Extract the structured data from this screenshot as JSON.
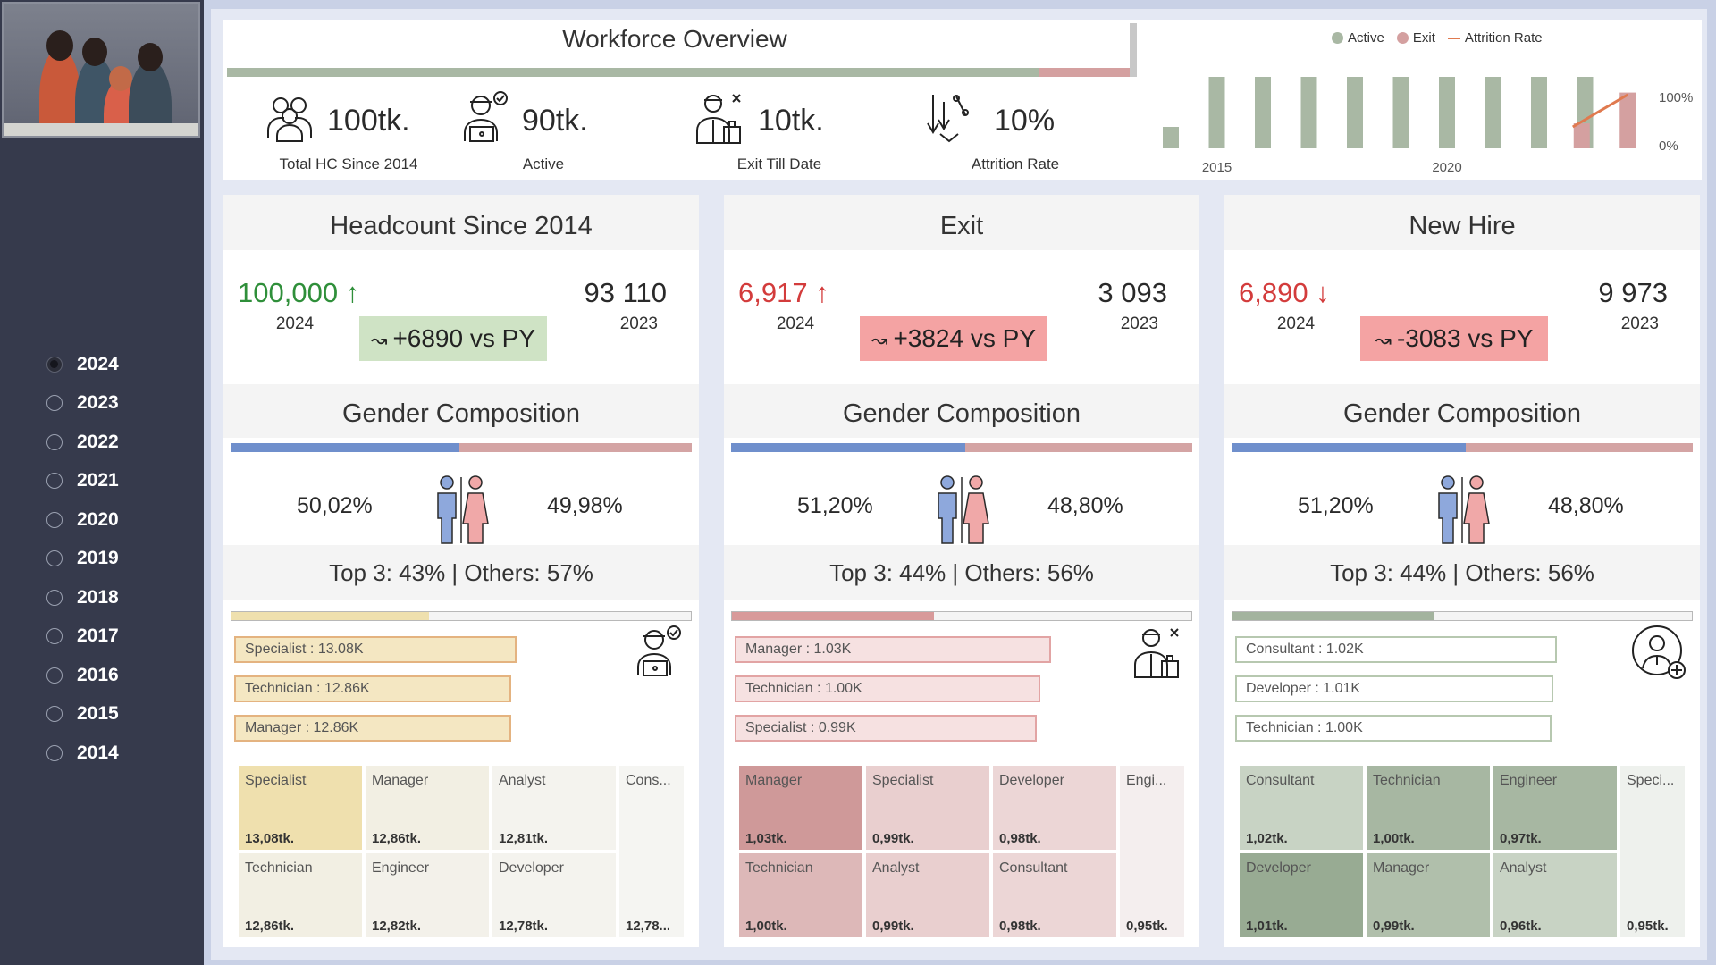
{
  "sidebar": {
    "years": [
      "2024",
      "2023",
      "2022",
      "2021",
      "2020",
      "2019",
      "2018",
      "2017",
      "2016",
      "2015",
      "2014"
    ],
    "selected": "2024"
  },
  "overview": {
    "title": "Workforce Overview",
    "kpis": [
      {
        "value": "100tk.",
        "label": "Total HC Since 2014",
        "icon": "team-icon"
      },
      {
        "value": "90tk.",
        "label": "Active",
        "icon": "employee-laptop-icon"
      },
      {
        "value": "10tk.",
        "label": "Exit Till Date",
        "icon": "exit-employee-icon"
      },
      {
        "value": "10%",
        "label": "Attrition Rate",
        "icon": "percent-down-icon"
      }
    ],
    "progress": {
      "active_share": 0.9,
      "exit_share": 0.1
    }
  },
  "chart_data": {
    "type": "bar",
    "legend": [
      "Active",
      "Exit",
      "Attrition Rate"
    ],
    "x_ticks": [
      "2015",
      "2020"
    ],
    "y2_ticks": [
      "100%",
      "0%"
    ],
    "categories": [
      "2014",
      "2015",
      "2016",
      "2017",
      "2018",
      "2019",
      "2020",
      "2021",
      "2022",
      "2023",
      "2024"
    ],
    "series": [
      {
        "name": "Active",
        "values": [
          0.3,
          1,
          1,
          1,
          1,
          1,
          1,
          1,
          1,
          1,
          0
        ]
      },
      {
        "name": "Exit",
        "values": [
          0,
          0,
          0,
          0,
          0,
          0,
          0,
          0,
          0,
          0.35,
          0.78
        ]
      },
      {
        "name": "Attrition Rate",
        "values": [
          0,
          0,
          0,
          0,
          0,
          0,
          0,
          0,
          0,
          0.25,
          0.75
        ]
      }
    ],
    "colors": {
      "Active": "#a9b8a4",
      "Exit": "#d4a0a0",
      "Attrition Rate": "#e07a4f"
    }
  },
  "cards": [
    {
      "title": "Headcount Since 2014",
      "current": "100,000",
      "arrow": "↑",
      "current_color": "#2f8f3a",
      "current_year": "2024",
      "previous": "93 110",
      "previous_year": "2023",
      "delta": "+6890 vs PY",
      "delta_bg": "#cfe3c5",
      "gender_title": "Gender Composition",
      "male_pct": "50,02%",
      "female_pct": "49,98%",
      "male_share": 0.5002,
      "top3": "Top 3: 43% | Others: 57%",
      "top3_share": 0.43,
      "top3_color": "#efe0ae",
      "role_fill": "#f4e7c2",
      "role_border": "#e4b380",
      "role_icon": "employee-laptop-icon",
      "roles": [
        {
          "label": "Specialist : 13.08K",
          "w": 316
        },
        {
          "label": "Technician : 12.86K",
          "w": 310
        },
        {
          "label": "Manager : 12.86K",
          "w": 310
        }
      ],
      "tiles": [
        {
          "name": "Specialist",
          "value": "13,08tk.",
          "bg": "#efe0ae"
        },
        {
          "name": "Manager",
          "value": "12,86tk.",
          "bg": "#f2efe3"
        },
        {
          "name": "Analyst",
          "value": "12,81tk.",
          "bg": "#f4f3ee"
        },
        {
          "name": "Technician",
          "value": "12,86tk.",
          "bg": "#f2efe3"
        },
        {
          "name": "Engineer",
          "value": "12,82tk.",
          "bg": "#f3f1ea"
        },
        {
          "name": "Developer",
          "value": "12,78tk.",
          "bg": "#f4f3ee"
        },
        {
          "name": "Cons...",
          "value": "12,78...",
          "bg": "#f5f5f2"
        }
      ]
    },
    {
      "title": "Exit",
      "current": "6,917",
      "arrow": "↑",
      "current_color": "#d33c3c",
      "current_year": "2024",
      "previous": "3 093",
      "previous_year": "2023",
      "delta": "+3824 vs PY",
      "delta_bg": "#f4a3a3",
      "gender_title": "Gender Composition",
      "male_pct": "51,20%",
      "female_pct": "48,80%",
      "male_share": 0.512,
      "top3": "Top 3: 44% | Others: 56%",
      "top3_share": 0.44,
      "top3_color": "#d89a9a",
      "role_fill": "#f6e1e1",
      "role_border": "#e2a4a4",
      "role_icon": "exit-employee-icon",
      "roles": [
        {
          "label": "Manager : 1.03K",
          "w": 354
        },
        {
          "label": "Technician : 1.00K",
          "w": 342
        },
        {
          "label": "Specialist : 0.99K",
          "w": 338
        }
      ],
      "tiles": [
        {
          "name": "Manager",
          "value": "1,03tk.",
          "bg": "#cf9999"
        },
        {
          "name": "Specialist",
          "value": "0,99tk.",
          "bg": "#e9cfcf"
        },
        {
          "name": "Developer",
          "value": "0,98tk.",
          "bg": "#ecd6d6"
        },
        {
          "name": "Technician",
          "value": "1,00tk.",
          "bg": "#ddb8b8"
        },
        {
          "name": "Analyst",
          "value": "0,99tk.",
          "bg": "#e9cfcf"
        },
        {
          "name": "Consultant",
          "value": "0,98tk.",
          "bg": "#ecd6d6"
        },
        {
          "name": "Engi...",
          "value": "0,95tk.",
          "bg": "#f4eeee"
        }
      ]
    },
    {
      "title": "New Hire",
      "current": "6,890",
      "arrow": "↓",
      "current_color": "#d33c3c",
      "current_year": "2024",
      "previous": "9 973",
      "previous_year": "2023",
      "delta": "-3083 vs PY",
      "delta_bg": "#f4a3a3",
      "gender_title": "Gender Composition",
      "male_pct": "51,20%",
      "female_pct": "48,80%",
      "male_share": 0.512,
      "top3": "Top 3: 44% | Others: 56%",
      "top3_share": 0.44,
      "top3_color": "#a3b39e",
      "role_fill": "#ffffff",
      "role_border": "#b7c8b0",
      "role_icon": "new-hire-icon",
      "roles": [
        {
          "label": "Consultant : 1.02K",
          "w": 360
        },
        {
          "label": "Developer : 1.01K",
          "w": 356
        },
        {
          "label": "Technician : 1.00K",
          "w": 354
        }
      ],
      "tiles": [
        {
          "name": "Consultant",
          "value": "1,02tk.",
          "bg": "#c8d3c4"
        },
        {
          "name": "Technician",
          "value": "1,00tk.",
          "bg": "#a7b7a2"
        },
        {
          "name": "Engineer",
          "value": "0,97tk.",
          "bg": "#a7b7a2"
        },
        {
          "name": "Developer",
          "value": "1,01tk.",
          "bg": "#98ab93"
        },
        {
          "name": "Manager",
          "value": "0,99tk.",
          "bg": "#b0bfab"
        },
        {
          "name": "Analyst",
          "value": "0,96tk.",
          "bg": "#c8d3c4"
        },
        {
          "name": "Speci...",
          "value": "0,95tk.",
          "bg": "#eef1ed"
        }
      ]
    }
  ]
}
